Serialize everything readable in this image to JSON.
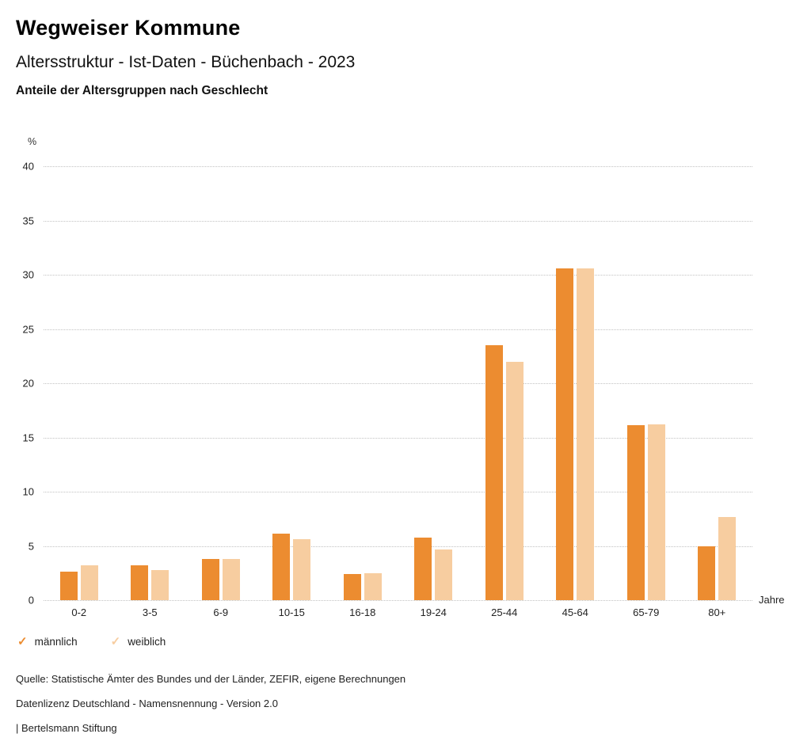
{
  "header": {
    "title": "Wegweiser Kommune",
    "subtitle": "Altersstruktur - Ist-Daten - Büchenbach - 2023",
    "chart_title": "Anteile der Altersgruppen nach Geschlecht"
  },
  "chart_data": {
    "type": "bar",
    "title": "Anteile der Altersgruppen nach Geschlecht",
    "categories": [
      "0-2",
      "3-5",
      "6-9",
      "10-15",
      "16-18",
      "19-24",
      "25-44",
      "45-64",
      "65-79",
      "80+"
    ],
    "series": [
      {
        "name": "männlich",
        "color": "#EC8C30",
        "values": [
          2.6,
          3.2,
          3.8,
          6.1,
          2.4,
          5.8,
          23.5,
          30.6,
          16.1,
          5.0
        ]
      },
      {
        "name": "weiblich",
        "color": "#F7CDA0",
        "values": [
          3.2,
          2.8,
          3.8,
          5.6,
          2.5,
          4.7,
          22.0,
          30.6,
          16.2,
          7.7
        ]
      }
    ],
    "xlabel": "Jahre",
    "ylabel": "%",
    "ylim": [
      0,
      40
    ],
    "yticks": [
      0,
      5,
      10,
      15,
      20,
      25,
      30,
      35,
      40
    ],
    "grid": true,
    "legend_position": "bottom"
  },
  "legend": {
    "check_glyph": "✓",
    "items": [
      {
        "label": "männlich",
        "color": "#EC8C30"
      },
      {
        "label": "weiblich",
        "color": "#F7CDA0"
      }
    ]
  },
  "footer": {
    "source": "Quelle: Statistische Ämter des Bundes und der Länder, ZEFIR, eigene Berechnungen",
    "license": "Datenlizenz Deutschland - Namensnennung - Version 2.0",
    "brand": "| Bertelsmann Stiftung"
  }
}
